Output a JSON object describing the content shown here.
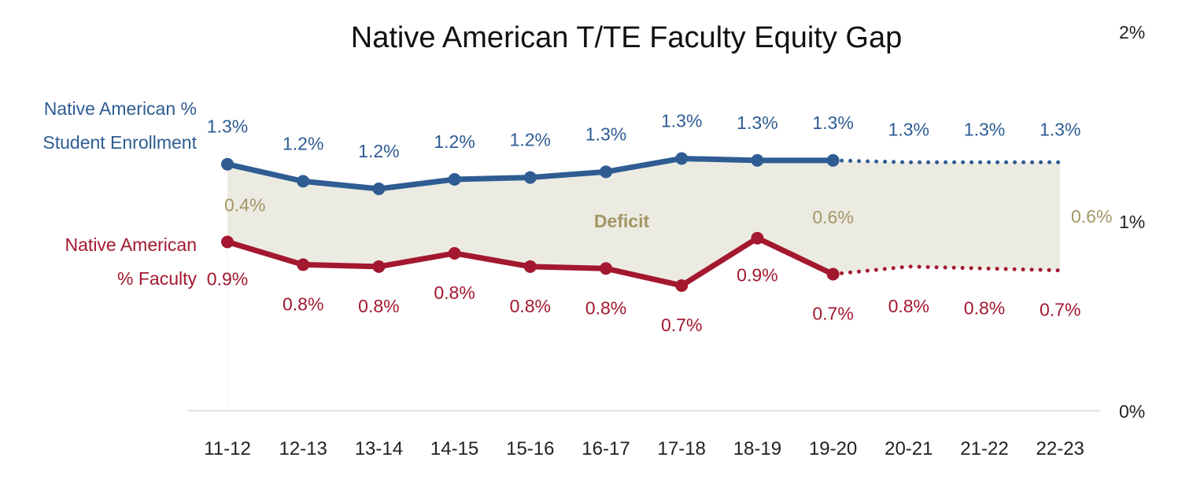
{
  "chart_data": {
    "type": "line",
    "title": "Native American T/TE Faculty Equity Gap",
    "categories": [
      "11-12",
      "12-13",
      "13-14",
      "14-15",
      "15-16",
      "16-17",
      "17-18",
      "18-19",
      "19-20",
      "20-21",
      "21-22",
      "22-23"
    ],
    "y_axis": {
      "ticks": [
        "0%",
        "1%",
        "2%"
      ],
      "ylim": [
        0,
        2
      ],
      "position": "right"
    },
    "actual_through": "19-20",
    "colors": {
      "enrollment": "#2e5c93",
      "faculty": "#a3182f",
      "gap_fill": "#ecebe2",
      "gap_label": "#a39565",
      "axis": "#d9d9d9"
    },
    "series": [
      {
        "key": "enrollment",
        "name_lines": [
          "Native American %",
          "Student Enrollment"
        ],
        "values": [
          1.3,
          1.21,
          1.17,
          1.22,
          1.23,
          1.26,
          1.33,
          1.32,
          1.32,
          1.31,
          1.31,
          1.31
        ],
        "labels": [
          "1.3%",
          "1.2%",
          "1.2%",
          "1.2%",
          "1.2%",
          "1.3%",
          "1.3%",
          "1.3%",
          "1.3%",
          "1.3%",
          "1.3%",
          "1.3%"
        ]
      },
      {
        "key": "faculty",
        "name_lines": [
          "Native American",
          "% Faculty"
        ],
        "values": [
          0.89,
          0.77,
          0.76,
          0.83,
          0.76,
          0.75,
          0.66,
          0.91,
          0.72,
          0.76,
          0.75,
          0.74
        ],
        "labels": [
          "0.9%",
          "0.8%",
          "0.8%",
          "0.8%",
          "0.8%",
          "0.8%",
          "0.7%",
          "0.9%",
          "0.7%",
          "0.8%",
          "0.8%",
          "0.7%"
        ]
      }
    ],
    "gap_annotations": [
      {
        "category": "11-12",
        "text": "0.4%"
      },
      {
        "category": "16-17",
        "text": "Deficit"
      },
      {
        "category": "19-20",
        "text": "0.6%"
      },
      {
        "category": "22-23",
        "text": "0.6%"
      }
    ]
  }
}
